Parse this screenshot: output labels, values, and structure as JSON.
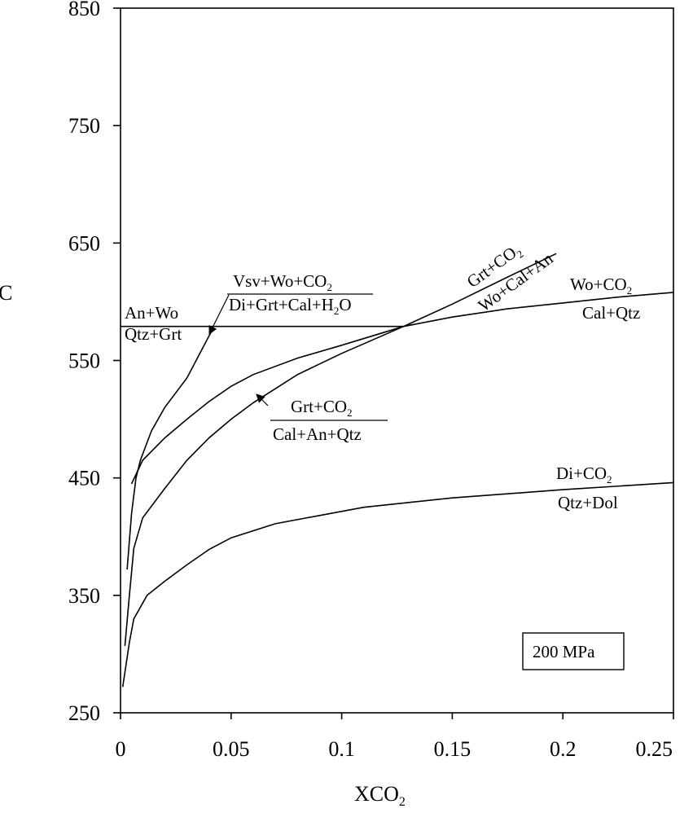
{
  "chart_data": {
    "type": "line",
    "title": "",
    "xlabel": "XCO2",
    "ylabel": "C",
    "xlim": [
      0,
      0.25
    ],
    "ylim": [
      250,
      850
    ],
    "x_ticks": [
      "0",
      "0.05",
      "0.1",
      "0.15",
      "0.2",
      "0.25"
    ],
    "y_ticks": [
      "250",
      "350",
      "450",
      "550",
      "650",
      "750",
      "850"
    ],
    "grid": false,
    "pressure_label": "200 MPa",
    "series": [
      {
        "id": "an-wo",
        "top": "An+Wo",
        "bottom": "Qtz+Grt",
        "points": [
          [
            0,
            579
          ],
          [
            0.128,
            579
          ]
        ]
      },
      {
        "id": "vsv",
        "top": "Vsv+Wo+CO2",
        "bottom": "Di+Grt+Cal+H2O",
        "points": [
          [
            0.003,
            372
          ],
          [
            0.005,
            420
          ],
          [
            0.007,
            450
          ],
          [
            0.009,
            465
          ],
          [
            0.014,
            490
          ],
          [
            0.02,
            510
          ],
          [
            0.03,
            535
          ],
          [
            0.042,
            578
          ]
        ]
      },
      {
        "id": "grt-wo-cal-an",
        "top": "Grt+CO2",
        "bottom": "Wo+Cal+An",
        "points": [
          [
            0.005,
            445
          ],
          [
            0.01,
            465
          ],
          [
            0.02,
            484
          ],
          [
            0.03,
            500
          ],
          [
            0.04,
            515
          ],
          [
            0.05,
            528
          ],
          [
            0.06,
            538
          ],
          [
            0.08,
            552
          ],
          [
            0.1,
            563
          ],
          [
            0.128,
            579
          ],
          [
            0.15,
            598
          ],
          [
            0.175,
            621
          ],
          [
            0.197,
            641
          ]
        ]
      },
      {
        "id": "grt-cal-an-qtz",
        "top": "Grt+CO2",
        "bottom": "Cal+An+Qtz",
        "points": [
          [
            0.002,
            307
          ],
          [
            0.004,
            350
          ],
          [
            0.006,
            390
          ],
          [
            0.01,
            416
          ],
          [
            0.02,
            441
          ],
          [
            0.03,
            465
          ],
          [
            0.04,
            484
          ],
          [
            0.05,
            500
          ],
          [
            0.06,
            514
          ],
          [
            0.08,
            538
          ],
          [
            0.1,
            556
          ],
          [
            0.128,
            579
          ]
        ]
      },
      {
        "id": "wo-cal-qtz",
        "top": "Wo+CO2",
        "bottom": "Cal+Qtz",
        "points": [
          [
            0.128,
            579
          ],
          [
            0.15,
            587
          ],
          [
            0.175,
            594
          ],
          [
            0.2,
            599
          ],
          [
            0.225,
            604
          ],
          [
            0.25,
            608
          ]
        ]
      },
      {
        "id": "di-qtz-dol",
        "top": "Di+CO2",
        "bottom": "Qtz+Dol",
        "points": [
          [
            0.001,
            272
          ],
          [
            0.004,
            310
          ],
          [
            0.006,
            330
          ],
          [
            0.012,
            350
          ],
          [
            0.02,
            362
          ],
          [
            0.03,
            376
          ],
          [
            0.04,
            389
          ],
          [
            0.05,
            399
          ],
          [
            0.07,
            411
          ],
          [
            0.09,
            418
          ],
          [
            0.11,
            425
          ],
          [
            0.13,
            429
          ],
          [
            0.15,
            433
          ],
          [
            0.2,
            440
          ],
          [
            0.25,
            446
          ]
        ]
      }
    ]
  }
}
